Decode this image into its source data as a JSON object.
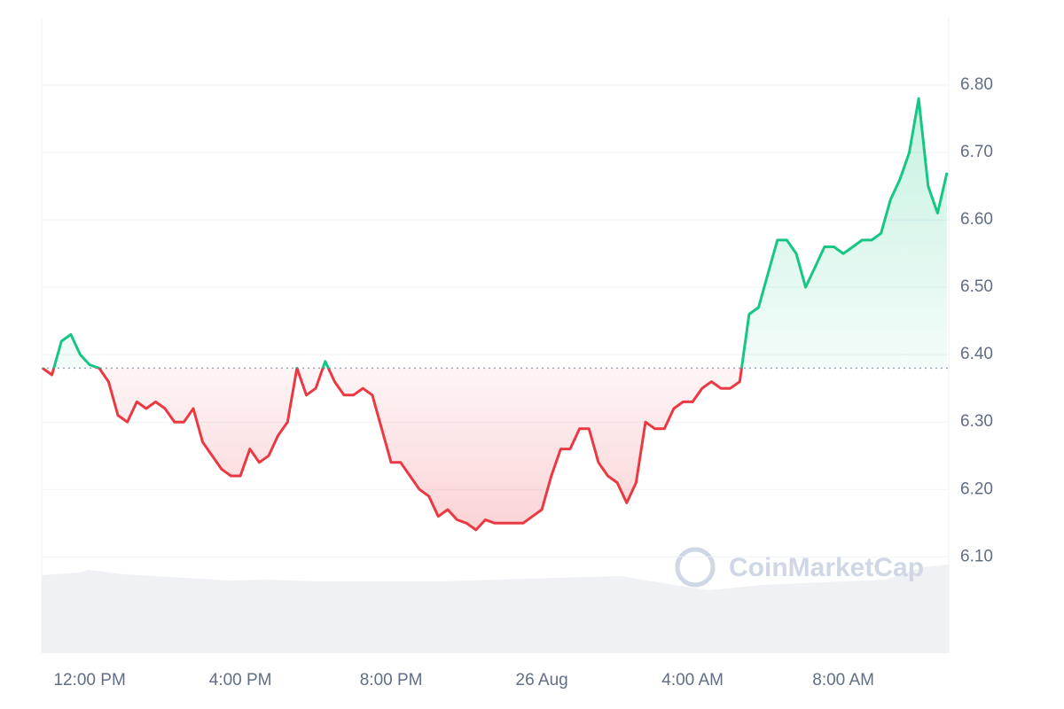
{
  "chart_data": {
    "type": "line",
    "watermark": "CoinMarketCap",
    "categories": [
      null,
      null,
      null,
      null,
      null,
      "12:00 PM",
      null,
      null,
      null,
      null,
      null,
      null,
      null,
      null,
      null,
      null,
      null,
      null,
      null,
      null,
      null,
      "4:00 PM",
      null,
      null,
      null,
      null,
      null,
      null,
      null,
      null,
      null,
      null,
      null,
      null,
      null,
      null,
      null,
      "8:00 PM",
      null,
      null,
      null,
      null,
      null,
      null,
      null,
      null,
      null,
      null,
      null,
      null,
      null,
      null,
      null,
      "26 Aug",
      null,
      null,
      null,
      null,
      null,
      null,
      null,
      null,
      null,
      null,
      null,
      null,
      null,
      null,
      null,
      "4:00 AM",
      null,
      null,
      null,
      null,
      null,
      null,
      null,
      null,
      null,
      null,
      null,
      null,
      null,
      null,
      null,
      "8:00 AM",
      null,
      null,
      null,
      null,
      null,
      null,
      null,
      null,
      null,
      null,
      null
    ],
    "values": [
      6.38,
      6.37,
      6.42,
      6.43,
      6.4,
      6.385,
      6.38,
      6.36,
      6.31,
      6.3,
      6.33,
      6.32,
      6.33,
      6.32,
      6.3,
      6.3,
      6.32,
      6.27,
      6.25,
      6.23,
      6.22,
      6.22,
      6.26,
      6.24,
      6.25,
      6.28,
      6.3,
      6.38,
      6.34,
      6.35,
      6.39,
      6.36,
      6.34,
      6.34,
      6.35,
      6.34,
      6.29,
      6.24,
      6.24,
      6.22,
      6.2,
      6.19,
      6.16,
      6.17,
      6.155,
      6.15,
      6.14,
      6.155,
      6.15,
      6.15,
      6.15,
      6.15,
      6.16,
      6.17,
      6.22,
      6.26,
      6.26,
      6.29,
      6.29,
      6.24,
      6.22,
      6.21,
      6.18,
      6.21,
      6.3,
      6.29,
      6.29,
      6.32,
      6.33,
      6.33,
      6.35,
      6.36,
      6.35,
      6.35,
      6.36,
      6.46,
      6.47,
      6.52,
      6.57,
      6.57,
      6.55,
      6.5,
      6.53,
      6.56,
      6.56,
      6.55,
      6.56,
      6.57,
      6.57,
      6.58,
      6.63,
      6.66,
      6.7,
      6.78,
      6.65,
      6.61,
      6.67
    ],
    "baseline": 6.38,
    "up_color": "#16c784",
    "down_color": "#ea3943",
    "ylim": [
      5.957,
      6.9
    ],
    "yticks": [
      {
        "value": 6.1,
        "label": "6.10"
      },
      {
        "value": 6.2,
        "label": "6.20"
      },
      {
        "value": 6.3,
        "label": "6.30"
      },
      {
        "value": 6.4,
        "label": "6.40"
      },
      {
        "value": 6.5,
        "label": "6.50"
      },
      {
        "value": 6.6,
        "label": "6.60"
      },
      {
        "value": 6.7,
        "label": "6.70"
      },
      {
        "value": 6.8,
        "label": "6.80"
      }
    ],
    "grid": true
  }
}
